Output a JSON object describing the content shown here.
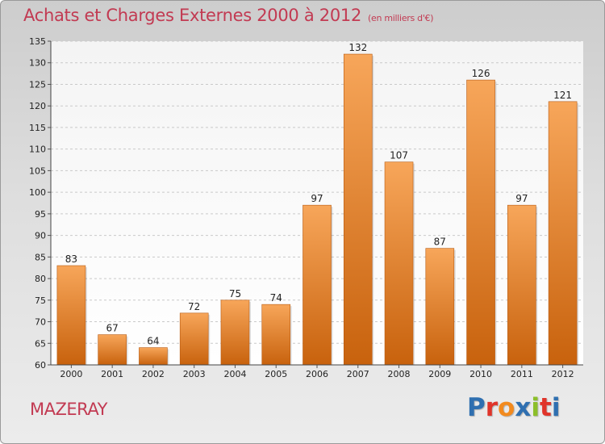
{
  "header": {
    "title": "Achats et Charges Externes 2000 à 2012",
    "subtitle": "(en milliers d'€)"
  },
  "footer": {
    "place": "MAZERAY",
    "brand": "Proxiti",
    "brand_colors": [
      "#2f6fb0",
      "#e0342a",
      "#f28a1e",
      "#2f6fb0",
      "#8cbf2a",
      "#e0342a",
      "#2f6fb0"
    ]
  },
  "colors": {
    "title": "#c23a52",
    "bar_top": "#f7a65a",
    "bar_bottom": "#c8620d"
  },
  "chart_data": {
    "type": "bar",
    "title": "Achats et Charges Externes 2000 à 2012",
    "categories": [
      "2000",
      "2001",
      "2002",
      "2003",
      "2004",
      "2005",
      "2006",
      "2007",
      "2008",
      "2009",
      "2010",
      "2011",
      "2012"
    ],
    "values": [
      83,
      67,
      64,
      72,
      75,
      74,
      97,
      132,
      107,
      87,
      126,
      97,
      121
    ],
    "ylim": [
      60,
      135
    ],
    "yticks": [
      60,
      65,
      70,
      75,
      80,
      85,
      90,
      95,
      100,
      105,
      110,
      115,
      120,
      125,
      130,
      135
    ],
    "grid": true,
    "legend": "none"
  }
}
